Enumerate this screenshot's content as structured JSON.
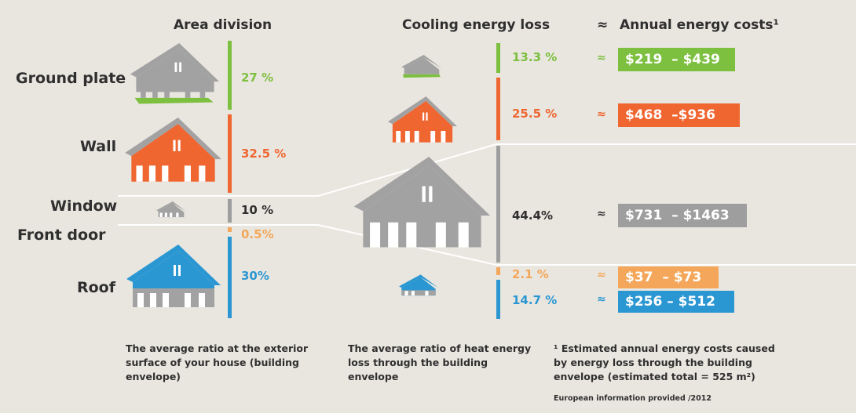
{
  "headers": {
    "area": "Area division",
    "cooling": "Cooling energy loss",
    "approx": "≈",
    "annual": "Annual energy costs¹"
  },
  "rows": [
    "Ground plate",
    "Wall",
    "Window",
    "Front door",
    "Roof"
  ],
  "colors": {
    "ground": "#7dbf3f",
    "wall": "#ef6631",
    "window": "#9e9e9e",
    "door": "#f4a75a",
    "roof": "#2b97d2",
    "house_gray": "#a2a2a2"
  },
  "chart_data": [
    {
      "type": "bar",
      "title": "Area division",
      "categories": [
        "Ground plate",
        "Wall",
        "Window",
        "Front door",
        "Roof"
      ],
      "values": [
        27,
        32.5,
        10,
        0.5,
        30
      ],
      "labels": [
        "27 %",
        "32.5 %",
        "10 %",
        "0.5%",
        "30%"
      ]
    },
    {
      "type": "bar",
      "title": "Cooling energy loss",
      "categories": [
        "Ground plate",
        "Wall",
        "Window",
        "Front door",
        "Roof"
      ],
      "values": [
        13.3,
        25.5,
        44.4,
        2.1,
        14.7
      ],
      "labels": [
        "13.3 %",
        "25.5 %",
        "44.4%",
        "2.1 %",
        "14.7 %"
      ]
    },
    {
      "type": "table",
      "title": "Annual energy costs¹",
      "categories": [
        "Ground plate",
        "Wall",
        "Window",
        "Front door",
        "Roof"
      ],
      "ranges": [
        [
          219,
          439
        ],
        [
          468,
          936
        ],
        [
          731,
          1463
        ],
        [
          37,
          73
        ],
        [
          256,
          512
        ]
      ],
      "labels": [
        "$219  – $439",
        "$468  –$936",
        "$731  – $1463",
        "$37  – $73",
        "$256 – $512"
      ]
    }
  ],
  "footnotes": {
    "area": "The average ratio at the exterior surface of your house (building envelope)",
    "cooling": "The average ratio of heat energy loss through the building envelope",
    "annual": "¹ Estimated annual energy costs caused by energy loss through the building envelope (estimated total = 525 m²)",
    "source": "European information provided /2012"
  }
}
